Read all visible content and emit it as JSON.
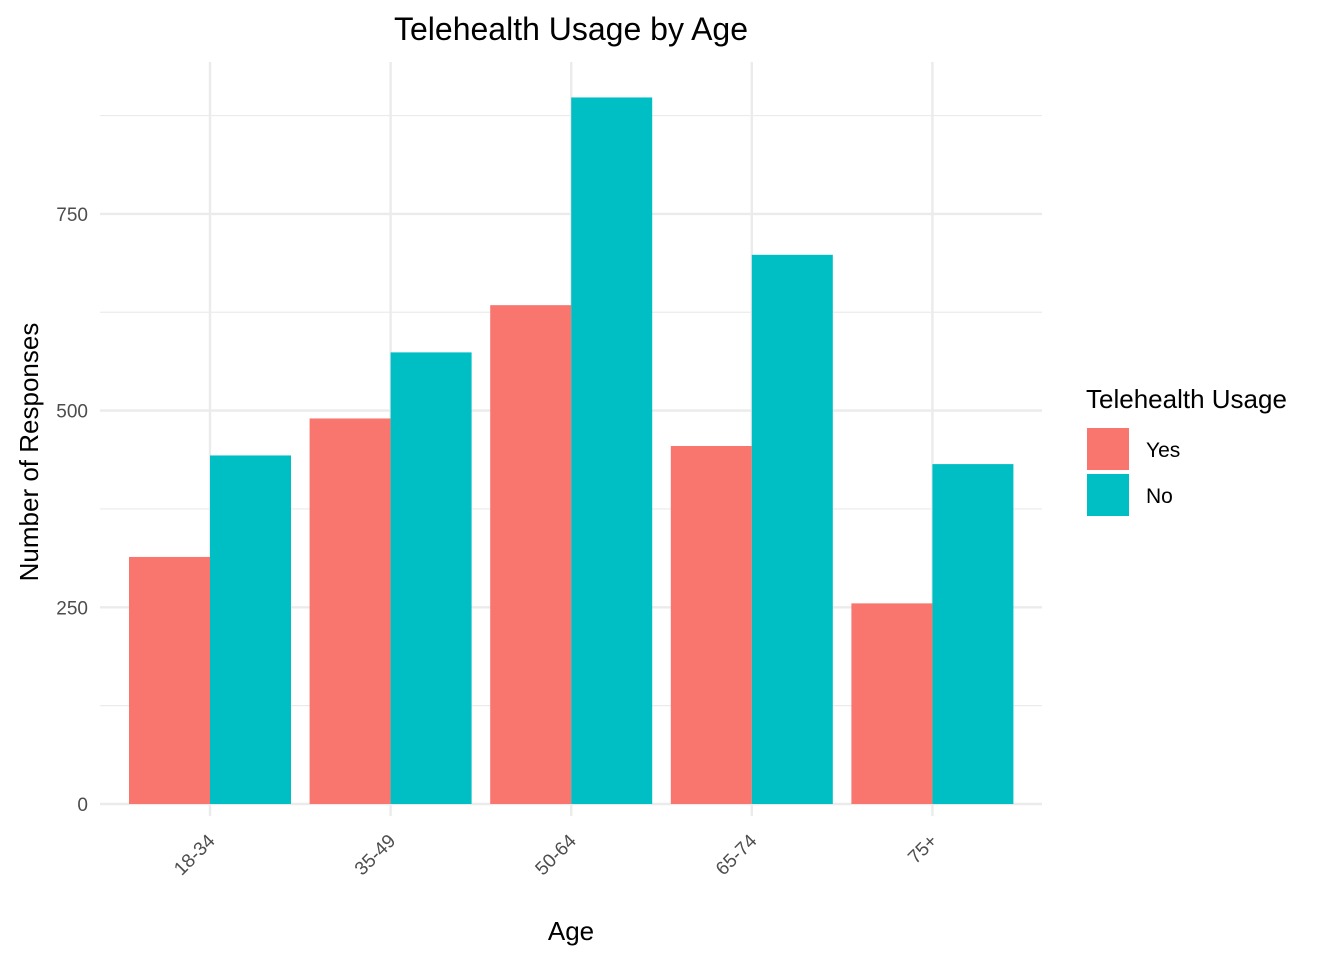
{
  "chart_data": {
    "type": "bar",
    "title": "Telehealth Usage by Age",
    "xlabel": "Age",
    "ylabel": "Number of Responses",
    "categories": [
      "18-34",
      "35-49",
      "50-64",
      "65-74",
      "75+"
    ],
    "series": [
      {
        "name": "Yes",
        "color": "#F8766D",
        "values": [
          314,
          490,
          634,
          455,
          255
        ]
      },
      {
        "name": "No",
        "color": "#00BFC4",
        "values": [
          443,
          574,
          898,
          698,
          432
        ]
      }
    ],
    "ylim": [
      0,
      940
    ],
    "yticks": [
      0,
      250,
      500,
      750
    ],
    "grid": true,
    "legend": {
      "title": "Telehealth Usage",
      "position": "right"
    }
  }
}
